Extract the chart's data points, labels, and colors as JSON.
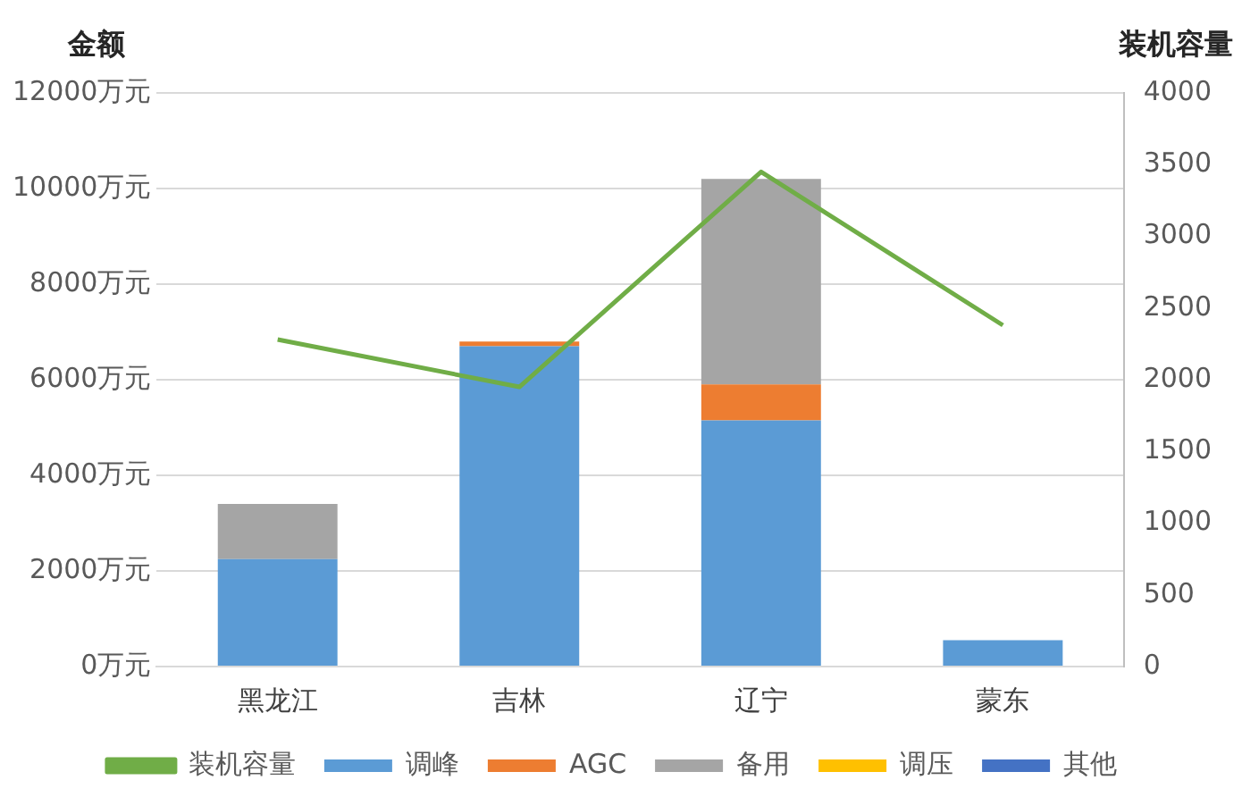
{
  "chart_data": {
    "type": "bar",
    "stacked": true,
    "ylabel": "金额",
    "y2label": "装机容量",
    "categories": [
      "黑龙江",
      "吉林",
      "辽宁",
      "蒙东"
    ],
    "series": [
      {
        "name": "调峰",
        "color": "#5b9bd5",
        "values": [
          2250,
          6700,
          5150,
          550
        ]
      },
      {
        "name": "AGC",
        "color": "#ed7d31",
        "values": [
          0,
          100,
          750,
          0
        ]
      },
      {
        "name": "备用",
        "color": "#a5a5a5",
        "values": [
          1150,
          0,
          4300,
          0
        ]
      },
      {
        "name": "调压",
        "color": "#ffc000",
        "values": [
          0,
          0,
          0,
          0
        ]
      },
      {
        "name": "其他",
        "color": "#4472c4",
        "values": [
          0,
          0,
          0,
          0
        ]
      },
      {
        "name": "装机容量",
        "type": "line",
        "axis": "y2",
        "color": "#70ad47",
        "values": [
          2280,
          1950,
          3450,
          2380
        ]
      }
    ],
    "ylim": [
      0,
      12000
    ],
    "yticks": [
      {
        "value": 0,
        "label": "0万元"
      },
      {
        "value": 2000,
        "label": "2000万元"
      },
      {
        "value": 4000,
        "label": "4000万元"
      },
      {
        "value": 6000,
        "label": "6000万元"
      },
      {
        "value": 8000,
        "label": "8000万元"
      },
      {
        "value": 10000,
        "label": "10000万元"
      },
      {
        "value": 12000,
        "label": "12000万元"
      }
    ],
    "y2lim": [
      0,
      4000
    ],
    "y2ticks": [
      0,
      500,
      1000,
      1500,
      2000,
      2500,
      3000,
      3500,
      4000
    ],
    "grid": "y",
    "legend": "bottom",
    "marker": "none",
    "line_style": "solid"
  }
}
